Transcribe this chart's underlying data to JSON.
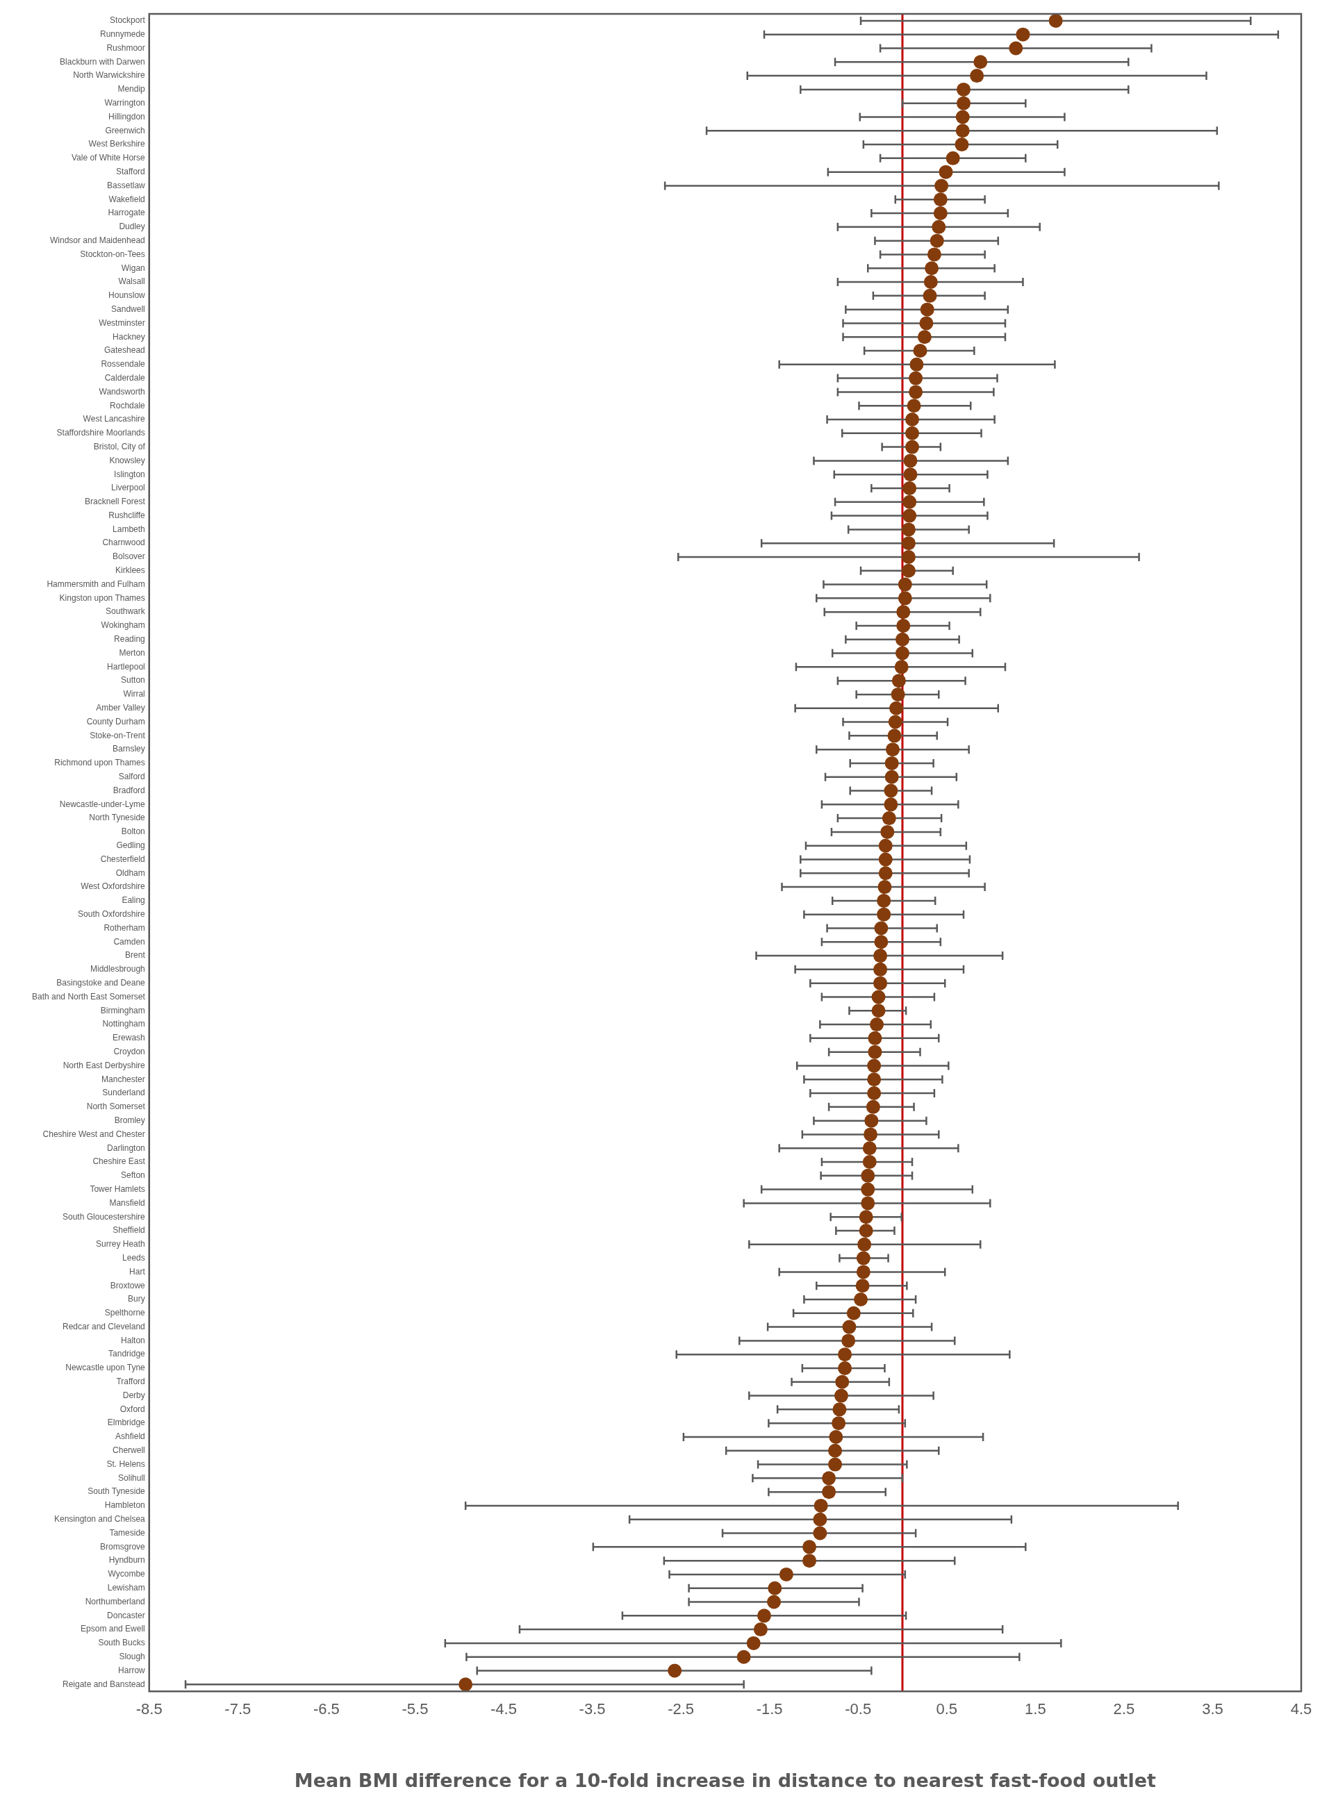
{
  "chart_data": {
    "type": "scatter",
    "orientation": "horizontal",
    "xlabel": "Mean BMI difference for a 10-fold increase in distance to nearest fast-food outlet",
    "categories": [
      "Stockport",
      "Runnymede",
      "Rushmoor",
      "Blackburn with Darwen",
      "North Warwickshire",
      "Mendip",
      "Warrington",
      "Hillingdon",
      "Greenwich",
      "West Berkshire",
      "Vale of White Horse",
      "Stafford",
      "Bassetlaw",
      "Wakefield",
      "Harrogate",
      "Dudley",
      "Windsor and Maidenhead",
      "Stockton-on-Tees",
      "Wigan",
      "Walsall",
      "Hounslow",
      "Sandwell",
      "Westminster",
      "Hackney",
      "Gateshead",
      "Rossendale",
      "Calderdale",
      "Wandsworth",
      "Rochdale",
      "West Lancashire",
      "Staffordshire Moorlands",
      "Bristol, City of",
      "Knowsley",
      "Islington",
      "Liverpool",
      "Bracknell Forest",
      "Rushcliffe",
      "Lambeth",
      "Charnwood",
      "Bolsover",
      "Kirklees",
      "Hammersmith and Fulham",
      "Kingston upon Thames",
      "Southwark",
      "Wokingham",
      "Reading",
      "Merton",
      "Hartlepool",
      "Sutton",
      "Wirral",
      "Amber Valley",
      "County Durham",
      "Stoke-on-Trent",
      "Barnsley",
      "Richmond upon Thames",
      "Salford",
      "Bradford",
      "Newcastle-under-Lyme",
      "North Tyneside",
      "Bolton",
      "Gedling",
      "Chesterfield",
      "Oldham",
      "West Oxfordshire",
      "Ealing",
      "South Oxfordshire",
      "Rotherham",
      "Camden",
      "Brent",
      "Middlesbrough",
      "Basingstoke and Deane",
      "Bath and North East Somerset",
      "Birmingham",
      "Nottingham",
      "Erewash",
      "Croydon",
      "North East Derbyshire",
      "Manchester",
      "Sunderland",
      "North Somerset",
      "Bromley",
      "Cheshire West and Chester",
      "Darlington",
      "Cheshire East",
      "Sefton",
      "Tower Hamlets",
      "Mansfield",
      "South Gloucestershire",
      "Sheffield",
      "Surrey Heath",
      "Leeds",
      "Hart",
      "Broxtowe",
      "Bury",
      "Spelthorne",
      "Redcar and Cleveland",
      "Halton",
      "Tandridge",
      "Newcastle upon Tyne",
      "Trafford",
      "Derby",
      "Oxford",
      "Elmbridge",
      "Ashfield",
      "Cherwell",
      "St. Helens",
      "Solihull",
      "South Tyneside",
      "Hambleton",
      "Kensington and Chelsea",
      "Tameside",
      "Bromsgrove",
      "Hyndburn",
      "Wycombe",
      "Lewisham",
      "Northumberland",
      "Doncaster",
      "Epsom and Ewell",
      "South Bucks",
      "Slough",
      "Harrow",
      "Reigate and Banstead"
    ],
    "values": [
      1.73,
      1.36,
      1.28,
      0.88,
      0.84,
      0.69,
      0.69,
      0.68,
      0.68,
      0.67,
      0.57,
      0.49,
      0.44,
      0.43,
      0.43,
      0.41,
      0.39,
      0.36,
      0.33,
      0.32,
      0.31,
      0.28,
      0.27,
      0.25,
      0.2,
      0.16,
      0.15,
      0.15,
      0.13,
      0.11,
      0.11,
      0.11,
      0.09,
      0.09,
      0.08,
      0.08,
      0.08,
      0.07,
      0.07,
      0.07,
      0.07,
      0.03,
      0.03,
      0.01,
      0.01,
      0.0,
      0.0,
      -0.01,
      -0.04,
      -0.05,
      -0.07,
      -0.08,
      -0.09,
      -0.11,
      -0.12,
      -0.12,
      -0.13,
      -0.13,
      -0.15,
      -0.17,
      -0.19,
      -0.19,
      -0.19,
      -0.2,
      -0.21,
      -0.21,
      -0.24,
      -0.24,
      -0.25,
      -0.25,
      -0.25,
      -0.27,
      -0.27,
      -0.29,
      -0.31,
      -0.31,
      -0.32,
      -0.32,
      -0.32,
      -0.33,
      -0.35,
      -0.36,
      -0.37,
      -0.37,
      -0.39,
      -0.39,
      -0.39,
      -0.41,
      -0.41,
      -0.43,
      -0.44,
      -0.44,
      -0.45,
      -0.47,
      -0.55,
      -0.6,
      -0.61,
      -0.65,
      -0.65,
      -0.68,
      -0.69,
      -0.71,
      -0.72,
      -0.75,
      -0.76,
      -0.76,
      -0.83,
      -0.83,
      -0.92,
      -0.93,
      -0.93,
      -1.05,
      -1.05,
      -1.31,
      -1.44,
      -1.45,
      -1.56,
      -1.6,
      -1.68,
      -1.79,
      -2.57,
      -4.93
    ],
    "errors": [
      [
        -0.47,
        3.93
      ],
      [
        -1.56,
        4.24
      ],
      [
        -0.25,
        2.81
      ],
      [
        -0.76,
        2.55
      ],
      [
        -1.75,
        3.43
      ],
      [
        -1.15,
        2.55
      ],
      [
        0.0,
        1.39
      ],
      [
        -0.48,
        1.83
      ],
      [
        -2.21,
        3.55
      ],
      [
        -0.44,
        1.75
      ],
      [
        -0.25,
        1.39
      ],
      [
        -0.84,
        1.83
      ],
      [
        -2.68,
        3.57
      ],
      [
        -0.08,
        0.93
      ],
      [
        -0.35,
        1.19
      ],
      [
        -0.73,
        1.55
      ],
      [
        -0.31,
        1.08
      ],
      [
        -0.25,
        0.93
      ],
      [
        -0.39,
        1.04
      ],
      [
        -0.73,
        1.36
      ],
      [
        -0.33,
        0.93
      ],
      [
        -0.64,
        1.19
      ],
      [
        -0.67,
        1.16
      ],
      [
        -0.67,
        1.16
      ],
      [
        -0.43,
        0.81
      ],
      [
        -1.39,
        1.72
      ],
      [
        -0.73,
        1.07
      ],
      [
        -0.73,
        1.03
      ],
      [
        -0.49,
        0.77
      ],
      [
        -0.85,
        1.04
      ],
      [
        -0.68,
        0.89
      ],
      [
        -0.23,
        0.43
      ],
      [
        -1.0,
        1.19
      ],
      [
        -0.77,
        0.96
      ],
      [
        -0.35,
        0.53
      ],
      [
        -0.76,
        0.92
      ],
      [
        -0.8,
        0.96
      ],
      [
        -0.61,
        0.75
      ],
      [
        -1.59,
        1.71
      ],
      [
        -2.53,
        2.67
      ],
      [
        -0.47,
        0.57
      ],
      [
        -0.89,
        0.95
      ],
      [
        -0.97,
        0.99
      ],
      [
        -0.88,
        0.88
      ],
      [
        -0.52,
        0.53
      ],
      [
        -0.64,
        0.64
      ],
      [
        -0.79,
        0.79
      ],
      [
        -1.2,
        1.16
      ],
      [
        -0.73,
        0.71
      ],
      [
        -0.52,
        0.41
      ],
      [
        -1.21,
        1.08
      ],
      [
        -0.67,
        0.51
      ],
      [
        -0.6,
        0.39
      ],
      [
        -0.97,
        0.75
      ],
      [
        -0.59,
        0.35
      ],
      [
        -0.87,
        0.61
      ],
      [
        -0.59,
        0.33
      ],
      [
        -0.91,
        0.63
      ],
      [
        -0.73,
        0.44
      ],
      [
        -0.8,
        0.43
      ],
      [
        -1.09,
        0.72
      ],
      [
        -1.15,
        0.76
      ],
      [
        -1.15,
        0.75
      ],
      [
        -1.36,
        0.93
      ],
      [
        -0.79,
        0.37
      ],
      [
        -1.11,
        0.69
      ],
      [
        -0.85,
        0.39
      ],
      [
        -0.91,
        0.43
      ],
      [
        -1.65,
        1.13
      ],
      [
        -1.21,
        0.69
      ],
      [
        -1.04,
        0.48
      ],
      [
        -0.91,
        0.36
      ],
      [
        -0.6,
        0.04
      ],
      [
        -0.93,
        0.32
      ],
      [
        -1.04,
        0.41
      ],
      [
        -0.83,
        0.2
      ],
      [
        -1.19,
        0.52
      ],
      [
        -1.11,
        0.45
      ],
      [
        -1.04,
        0.36
      ],
      [
        -0.83,
        0.13
      ],
      [
        -1.0,
        0.27
      ],
      [
        -1.13,
        0.41
      ],
      [
        -1.39,
        0.63
      ],
      [
        -0.91,
        0.11
      ],
      [
        -0.92,
        0.11
      ],
      [
        -1.59,
        0.79
      ],
      [
        -1.79,
        0.99
      ],
      [
        -0.81,
        -0.01
      ],
      [
        -0.75,
        -0.09
      ],
      [
        -1.73,
        0.88
      ],
      [
        -0.71,
        -0.16
      ],
      [
        -1.39,
        0.48
      ],
      [
        -0.97,
        0.05
      ],
      [
        -1.11,
        0.15
      ],
      [
        -1.23,
        0.12
      ],
      [
        -1.52,
        0.33
      ],
      [
        -1.84,
        0.59
      ],
      [
        -2.55,
        1.21
      ],
      [
        -1.13,
        -0.2
      ],
      [
        -1.25,
        -0.15
      ],
      [
        -1.73,
        0.35
      ],
      [
        -1.41,
        -0.04
      ],
      [
        -1.51,
        0.03
      ],
      [
        -2.47,
        0.91
      ],
      [
        -1.99,
        0.41
      ],
      [
        -1.63,
        0.05
      ],
      [
        -1.69,
        0.0
      ],
      [
        -1.51,
        -0.19
      ],
      [
        -4.93,
        3.11
      ],
      [
        -3.08,
        1.23
      ],
      [
        -2.03,
        0.15
      ],
      [
        -3.49,
        1.39
      ],
      [
        -2.69,
        0.59
      ],
      [
        -2.63,
        0.03
      ],
      [
        -2.41,
        -0.45
      ],
      [
        -2.41,
        -0.49
      ],
      [
        -3.16,
        0.04
      ],
      [
        -4.32,
        1.13
      ],
      [
        -5.16,
        1.79
      ],
      [
        -4.92,
        1.32
      ],
      [
        -4.8,
        -0.35
      ],
      [
        -8.09,
        -1.79
      ]
    ],
    "color": "#843c0c",
    "marker": "circle",
    "xlim": [
      -8.5,
      4.5
    ],
    "xticks": [
      -8.5,
      -7.5,
      -6.5,
      -5.5,
      -4.5,
      -3.5,
      -2.5,
      -1.5,
      -0.5,
      0.5,
      1.5,
      2.5,
      3.5,
      4.5
    ],
    "ref_lines": [
      {
        "axis": "x",
        "value": 0,
        "color": "#c00000"
      }
    ],
    "grid": false
  }
}
